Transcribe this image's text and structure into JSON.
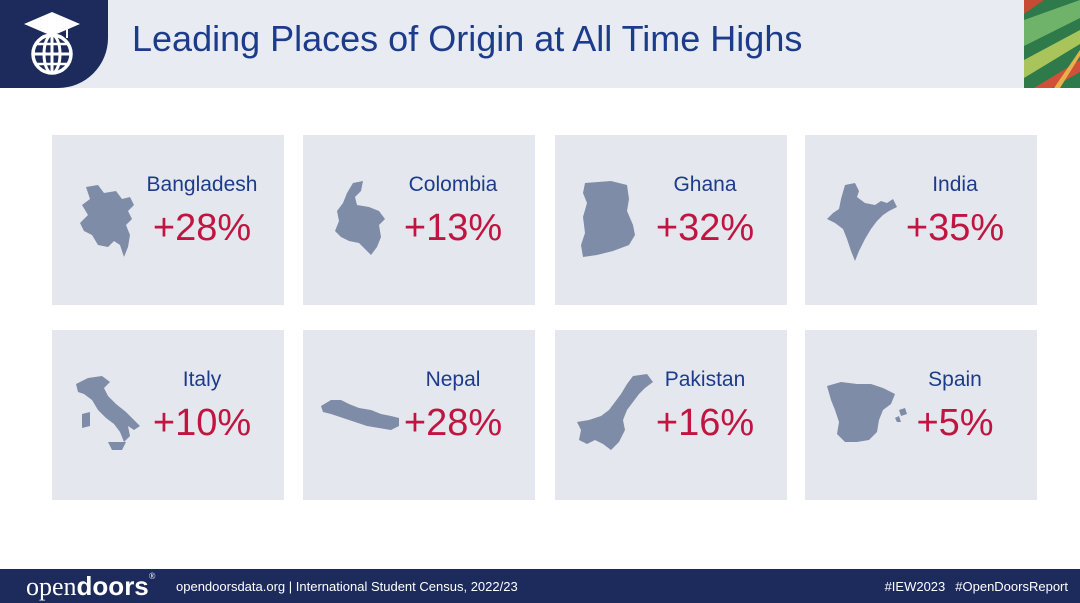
{
  "header": {
    "title": "Leading Places of Origin at All Time Highs",
    "logo_icon": "graduation-globe-icon"
  },
  "cards": [
    {
      "country": "Bangladesh",
      "change": "+28%"
    },
    {
      "country": "Colombia",
      "change": "+13%"
    },
    {
      "country": "Ghana",
      "change": "+32%"
    },
    {
      "country": "India",
      "change": "+35%"
    },
    {
      "country": "Italy",
      "change": "+10%"
    },
    {
      "country": "Nepal",
      "change": "+28%"
    },
    {
      "country": "Pakistan",
      "change": "+16%"
    },
    {
      "country": "Spain",
      "change": "+5%"
    }
  ],
  "footer": {
    "brand_light": "open",
    "brand_bold": "doors",
    "brand_mark": "®",
    "website": "opendoorsdata.org",
    "separator": "|",
    "subtitle": "International Student Census, 2022/23",
    "tags": [
      "#IEW2023",
      "#OpenDoorsReport"
    ]
  },
  "colors": {
    "navy": "#1c2a5c",
    "title_blue": "#1c3b8a",
    "accent_red": "#c01540",
    "card_bg": "#e4e7ed",
    "map_fill": "#7f8ca8"
  }
}
